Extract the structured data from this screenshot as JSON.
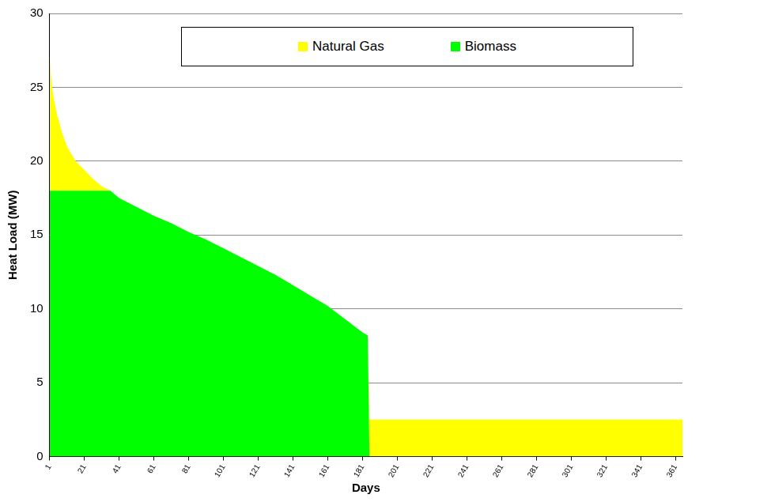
{
  "chart_data": {
    "type": "area",
    "x_label": "Days",
    "y_label": "Heat Load (MW)",
    "x": [
      1,
      2,
      3,
      5,
      8,
      11,
      16,
      21,
      26,
      31,
      36,
      41,
      51,
      61,
      71,
      81,
      91,
      101,
      111,
      121,
      131,
      141,
      151,
      161,
      171,
      181,
      184,
      185,
      200,
      250,
      300,
      365
    ],
    "series": [
      {
        "name": "Natural Gas",
        "color": "#ffff00",
        "values": [
          9.2,
          7.5,
          6.5,
          5.3,
          4.0,
          3.0,
          2.0,
          1.4,
          0.8,
          0.3,
          0,
          0,
          0,
          0,
          0,
          0,
          0,
          0,
          0,
          0,
          0,
          0,
          0,
          0,
          0,
          0,
          0,
          2.5,
          2.5,
          2.5,
          2.5,
          2.5
        ]
      },
      {
        "name": "Biomass",
        "color": "#00ff00",
        "values": [
          18,
          18,
          18,
          18,
          18,
          18,
          18,
          18,
          18,
          18,
          18,
          17.5,
          16.9,
          16.3,
          15.8,
          15.2,
          14.7,
          14.1,
          13.5,
          12.9,
          12.3,
          11.6,
          10.9,
          10.2,
          9.3,
          8.4,
          8.2,
          0,
          0,
          0,
          0,
          0
        ]
      }
    ],
    "stacked": true,
    "xlim": [
      1,
      365
    ],
    "xticks": [
      1,
      21,
      41,
      61,
      81,
      101,
      121,
      141,
      161,
      181,
      201,
      221,
      241,
      261,
      281,
      301,
      321,
      341,
      361
    ],
    "ylim": [
      0,
      30
    ],
    "yticks": [
      0,
      5,
      10,
      15,
      20,
      25,
      30
    ],
    "grid": true,
    "legend": "top"
  }
}
